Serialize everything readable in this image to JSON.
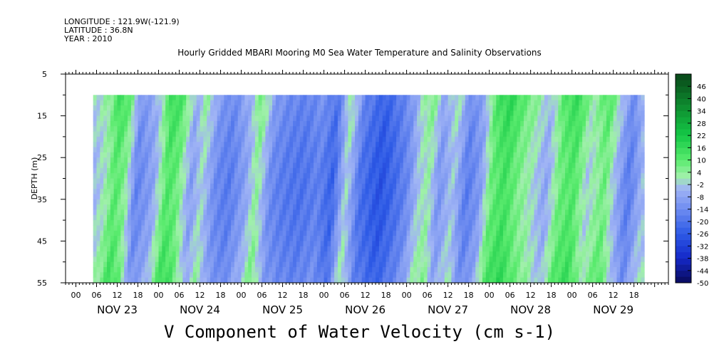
{
  "header": {
    "longitude": "LONGITUDE : 121.9W(-121.9)",
    "latitude": "LATITUDE : 36.8N",
    "year": "YEAR : 2010"
  },
  "chart_data": {
    "type": "heatmap",
    "title": "Hourly Gridded MBARI Mooring M0 Sea Water Temperature and Salinity Observations",
    "xlabel": "V Component of Water Velocity (cm s-1)",
    "ylabel": "DEPTH (m)",
    "y_ticks": [
      "5",
      "15",
      "25",
      "35",
      "45",
      "55"
    ],
    "ylim": [
      5,
      55
    ],
    "x_hour_ticks": [
      "00",
      "06",
      "12",
      "18",
      "00",
      "06",
      "12",
      "18",
      "00",
      "06",
      "12",
      "18",
      "00",
      "06",
      "12",
      "18",
      "00",
      "06",
      "12",
      "18",
      "00",
      "06",
      "12",
      "18",
      "00",
      "06",
      "12",
      "18"
    ],
    "x_day_labels": [
      "NOV 23",
      "NOV 24",
      "NOV 25",
      "NOV 26",
      "NOV 27",
      "NOV 28",
      "NOV 29"
    ],
    "data_depth_range": [
      10,
      55
    ],
    "colorbar_ticks": [
      "46",
      "40",
      "34",
      "28",
      "22",
      "16",
      "10",
      "4",
      "-2",
      "-8",
      "-14",
      "-20",
      "-26",
      "-32",
      "-38",
      "-44",
      "-50"
    ],
    "colorbar_range": [
      -50,
      52
    ],
    "velocity_profile_by_hour": [
      {
        "hour": 5,
        "v": 0
      },
      {
        "hour": 8,
        "v": 5
      },
      {
        "hour": 11,
        "v": 15
      },
      {
        "hour": 14,
        "v": 8
      },
      {
        "hour": 17,
        "v": -12
      },
      {
        "hour": 22,
        "v": -4
      },
      {
        "hour": 26,
        "v": 16
      },
      {
        "hour": 29,
        "v": 12
      },
      {
        "hour": 33,
        "v": -6
      },
      {
        "hour": 36,
        "v": 4
      },
      {
        "hour": 40,
        "v": -10
      },
      {
        "hour": 44,
        "v": -14
      },
      {
        "hour": 49,
        "v": -4
      },
      {
        "hour": 52,
        "v": 8
      },
      {
        "hour": 56,
        "v": -10
      },
      {
        "hour": 60,
        "v": -14
      },
      {
        "hour": 65,
        "v": -16
      },
      {
        "hour": 70,
        "v": -12
      },
      {
        "hour": 74,
        "v": -20
      },
      {
        "hour": 78,
        "v": 4
      },
      {
        "hour": 82,
        "v": -16
      },
      {
        "hour": 88,
        "v": -24
      },
      {
        "hour": 93,
        "v": -16
      },
      {
        "hour": 96,
        "v": -10
      },
      {
        "hour": 99,
        "v": 2
      },
      {
        "hour": 102,
        "v": 6
      },
      {
        "hour": 105,
        "v": -8
      },
      {
        "hour": 109,
        "v": 2
      },
      {
        "hour": 113,
        "v": -14
      },
      {
        "hour": 117,
        "v": -6
      },
      {
        "hour": 120,
        "v": 12
      },
      {
        "hour": 124,
        "v": 18
      },
      {
        "hour": 128,
        "v": 10
      },
      {
        "hour": 132,
        "v": 4
      },
      {
        "hour": 136,
        "v": -4
      },
      {
        "hour": 140,
        "v": 12
      },
      {
        "hour": 144,
        "v": 16
      },
      {
        "hour": 148,
        "v": 2
      },
      {
        "hour": 153,
        "v": 12
      },
      {
        "hour": 157,
        "v": -4
      },
      {
        "hour": 160,
        "v": -14
      },
      {
        "hour": 164,
        "v": 0
      }
    ]
  }
}
